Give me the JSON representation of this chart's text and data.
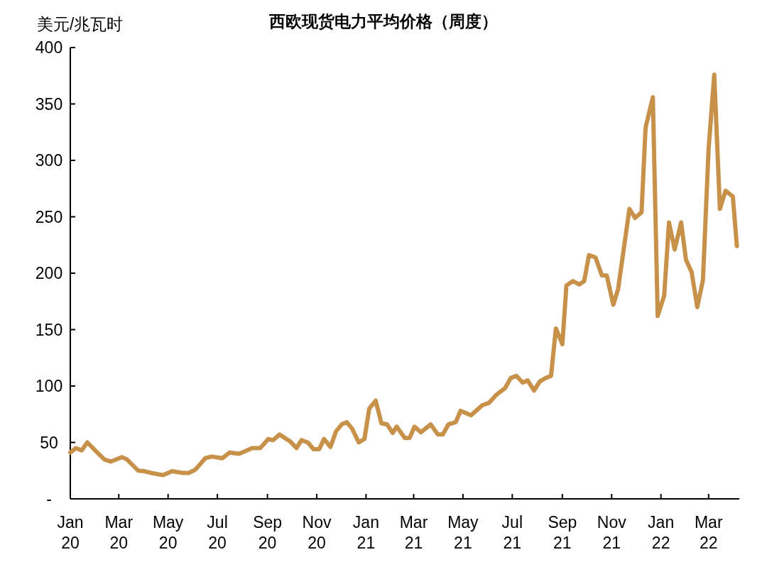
{
  "chart_data": {
    "type": "line",
    "title": "西欧现货电力平均价格（周度）",
    "ylabel": "美元/兆瓦时",
    "xlim": [
      "2020-01-01",
      "2022-04-08"
    ],
    "ylim": [
      0,
      400
    ],
    "xticks": [
      {
        "value": "2020-01-01",
        "label": "Jan 20"
      },
      {
        "value": "2020-03-01",
        "label": "Mar 20"
      },
      {
        "value": "2020-05-01",
        "label": "May 20"
      },
      {
        "value": "2020-07-01",
        "label": "Jul 20"
      },
      {
        "value": "2020-09-01",
        "label": "Sep 20"
      },
      {
        "value": "2020-11-01",
        "label": "Nov 20"
      },
      {
        "value": "2021-01-01",
        "label": "Jan 21"
      },
      {
        "value": "2021-03-01",
        "label": "Mar 21"
      },
      {
        "value": "2021-05-01",
        "label": "May 21"
      },
      {
        "value": "2021-07-01",
        "label": "Jul 21"
      },
      {
        "value": "2021-09-01",
        "label": "Sep 21"
      },
      {
        "value": "2021-11-01",
        "label": "Nov 21"
      },
      {
        "value": "2022-01-01",
        "label": "Jan 22"
      },
      {
        "value": "2022-03-01",
        "label": "Mar 22"
      }
    ],
    "yticks": [
      {
        "value": 0,
        "label": "-"
      },
      50,
      100,
      150,
      200,
      250,
      300,
      350,
      400
    ],
    "grid": false,
    "marker": "none",
    "line_style": "solid",
    "x": [
      "2020-01-01",
      "2020-01-08",
      "2020-01-15",
      "2020-01-22",
      "2020-02-02",
      "2020-02-12",
      "2020-02-20",
      "2020-03-05",
      "2020-03-11",
      "2020-03-25",
      "2020-04-02",
      "2020-04-10",
      "2020-04-25",
      "2020-05-06",
      "2020-05-19",
      "2020-05-27",
      "2020-06-04",
      "2020-06-16",
      "2020-06-24",
      "2020-07-07",
      "2020-07-16",
      "2020-07-28",
      "2020-08-13",
      "2020-08-23",
      "2020-09-02",
      "2020-09-08",
      "2020-09-16",
      "2020-09-29",
      "2020-10-07",
      "2020-10-13",
      "2020-10-21",
      "2020-10-28",
      "2020-11-04",
      "2020-11-10",
      "2020-11-18",
      "2020-11-25",
      "2020-12-02",
      "2020-12-08",
      "2020-12-15",
      "2020-12-23",
      "2020-12-30",
      "2021-01-05",
      "2021-01-13",
      "2021-01-20",
      "2021-01-27",
      "2021-02-03",
      "2021-02-08",
      "2021-02-18",
      "2021-02-24",
      "2021-03-02",
      "2021-03-10",
      "2021-03-22",
      "2021-03-31",
      "2021-04-06",
      "2021-04-13",
      "2021-04-22",
      "2021-04-28",
      "2021-05-11",
      "2021-05-25",
      "2021-06-02",
      "2021-06-11",
      "2021-06-22",
      "2021-06-29",
      "2021-07-06",
      "2021-07-14",
      "2021-07-20",
      "2021-07-28",
      "2021-08-04",
      "2021-08-11",
      "2021-08-18",
      "2021-08-24",
      "2021-09-01",
      "2021-09-06",
      "2021-09-14",
      "2021-09-22",
      "2021-09-28",
      "2021-10-04",
      "2021-10-12",
      "2021-10-20",
      "2021-10-26",
      "2021-11-03",
      "2021-11-09",
      "2021-11-23",
      "2021-11-30",
      "2021-12-08",
      "2021-12-13",
      "2021-12-22",
      "2021-12-28",
      "2022-01-05",
      "2022-01-11",
      "2022-01-18",
      "2022-01-26",
      "2022-02-01",
      "2022-02-08",
      "2022-02-15",
      "2022-02-22",
      "2022-03-01",
      "2022-03-08",
      "2022-03-15",
      "2022-03-22",
      "2022-03-31",
      "2022-04-05"
    ],
    "series": [
      {
        "color": "#c8914a",
        "values": [
          41,
          45,
          43,
          50,
          42,
          35,
          33,
          37,
          35,
          25,
          24.5,
          23,
          21,
          24.5,
          23,
          23,
          26,
          36,
          37.5,
          36,
          41,
          40,
          45,
          45,
          53,
          52,
          57,
          51,
          45,
          52,
          50,
          44,
          44,
          53,
          46,
          60,
          66,
          68,
          62,
          50,
          53,
          80,
          87,
          67,
          66,
          58.5,
          64,
          54,
          54,
          64,
          59,
          66,
          57,
          57,
          66,
          68,
          78,
          74,
          83,
          85,
          92,
          98,
          107,
          109,
          103,
          105,
          96,
          104,
          107,
          109,
          151,
          137,
          189,
          193,
          190,
          193,
          216,
          214,
          198,
          198,
          172,
          186,
          257,
          249,
          254,
          329,
          356,
          162,
          180,
          245,
          221,
          245,
          212,
          201,
          170,
          194,
          310,
          376,
          257,
          273,
          268,
          224
        ]
      }
    ]
  }
}
